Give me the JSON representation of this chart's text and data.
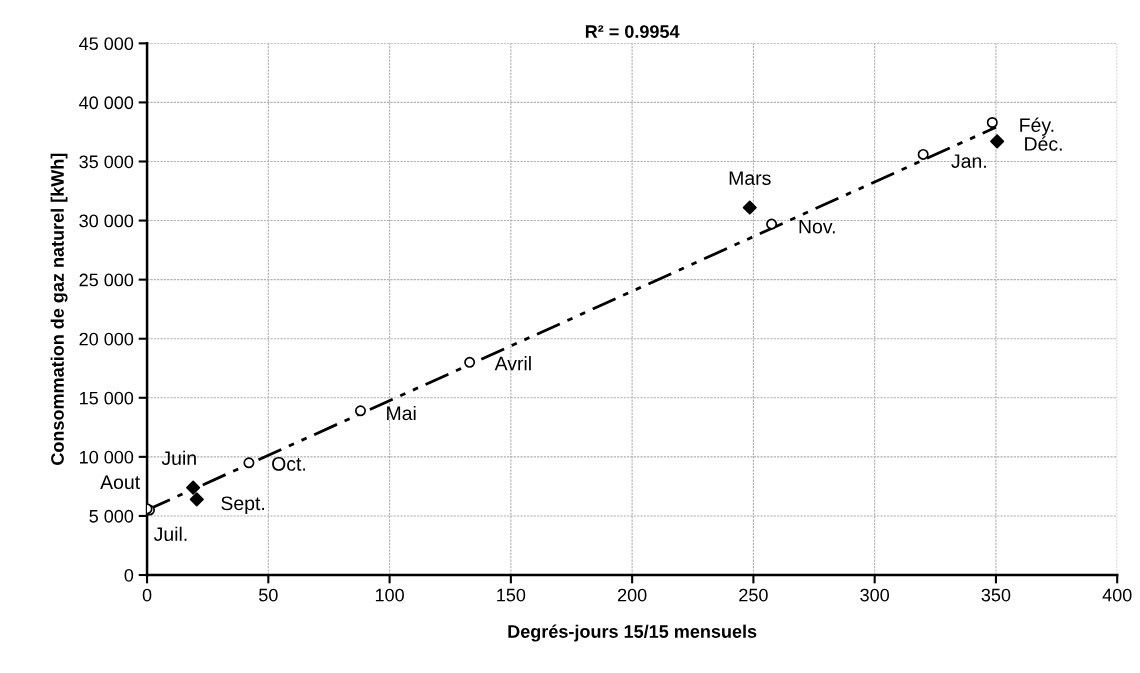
{
  "chart_data": {
    "type": "scatter",
    "title": "R² = 0.9954",
    "xlabel": "Degrés-jours 15/15 mensuels",
    "ylabel": "Consommation de gaz naturel [kWh]",
    "xlim": [
      0,
      400
    ],
    "xticks": [
      0,
      50,
      100,
      150,
      200,
      250,
      300,
      350,
      400
    ],
    "ylim": [
      0,
      45000
    ],
    "yticks": [
      {
        "value": 0,
        "label": "0"
      },
      {
        "value": 5000,
        "label": "5 000"
      },
      {
        "value": 10000,
        "label": "10 000"
      },
      {
        "value": 15000,
        "label": "15 000"
      },
      {
        "value": 20000,
        "label": "20 000"
      },
      {
        "value": 25000,
        "label": "25 000"
      },
      {
        "value": 30000,
        "label": "30 000"
      },
      {
        "value": 35000,
        "label": "35 000"
      },
      {
        "value": 40000,
        "label": "40 000"
      },
      {
        "value": 45000,
        "label": "45 000"
      }
    ],
    "grid": true,
    "legend": false,
    "series": [
      {
        "marker": "circle",
        "color": "#000000",
        "x": [
          1,
          0,
          42,
          88,
          133,
          257.5,
          320,
          348.5
        ],
        "values": [
          5500,
          5600,
          9500,
          13900,
          18000,
          29700,
          35600,
          38300
        ]
      },
      {
        "marker": "diamond",
        "color": "#000000",
        "x": [
          19,
          20.5,
          248.5,
          350.5
        ],
        "values": [
          7400,
          6400,
          31100,
          36700
        ]
      },
      {
        "type": "line",
        "line_style": "dashed",
        "marker": "none",
        "color": "#000000",
        "x": [
          0,
          350
        ],
        "values": [
          5500,
          37900
        ]
      }
    ],
    "annotations": [
      {
        "text": "Juil.",
        "x": 1,
        "y": 5500
      },
      {
        "text": "Aout",
        "x": 0,
        "y": 5600
      },
      {
        "text": "Juin",
        "x": 19,
        "y": 7400
      },
      {
        "text": "Sept.",
        "x": 20.5,
        "y": 6400
      },
      {
        "text": "Oct.",
        "x": 42,
        "y": 9500
      },
      {
        "text": "Mai",
        "x": 88,
        "y": 13900
      },
      {
        "text": "Avril",
        "x": 133,
        "y": 18000
      },
      {
        "text": "Mars",
        "x": 248.5,
        "y": 31100
      },
      {
        "text": "Nov.",
        "x": 257.5,
        "y": 29700
      },
      {
        "text": "Jan.",
        "x": 320,
        "y": 35600
      },
      {
        "text": "Féy.",
        "x": 348.5,
        "y": 38300
      },
      {
        "text": "Déc.",
        "x": 350.5,
        "y": 36700
      }
    ]
  }
}
